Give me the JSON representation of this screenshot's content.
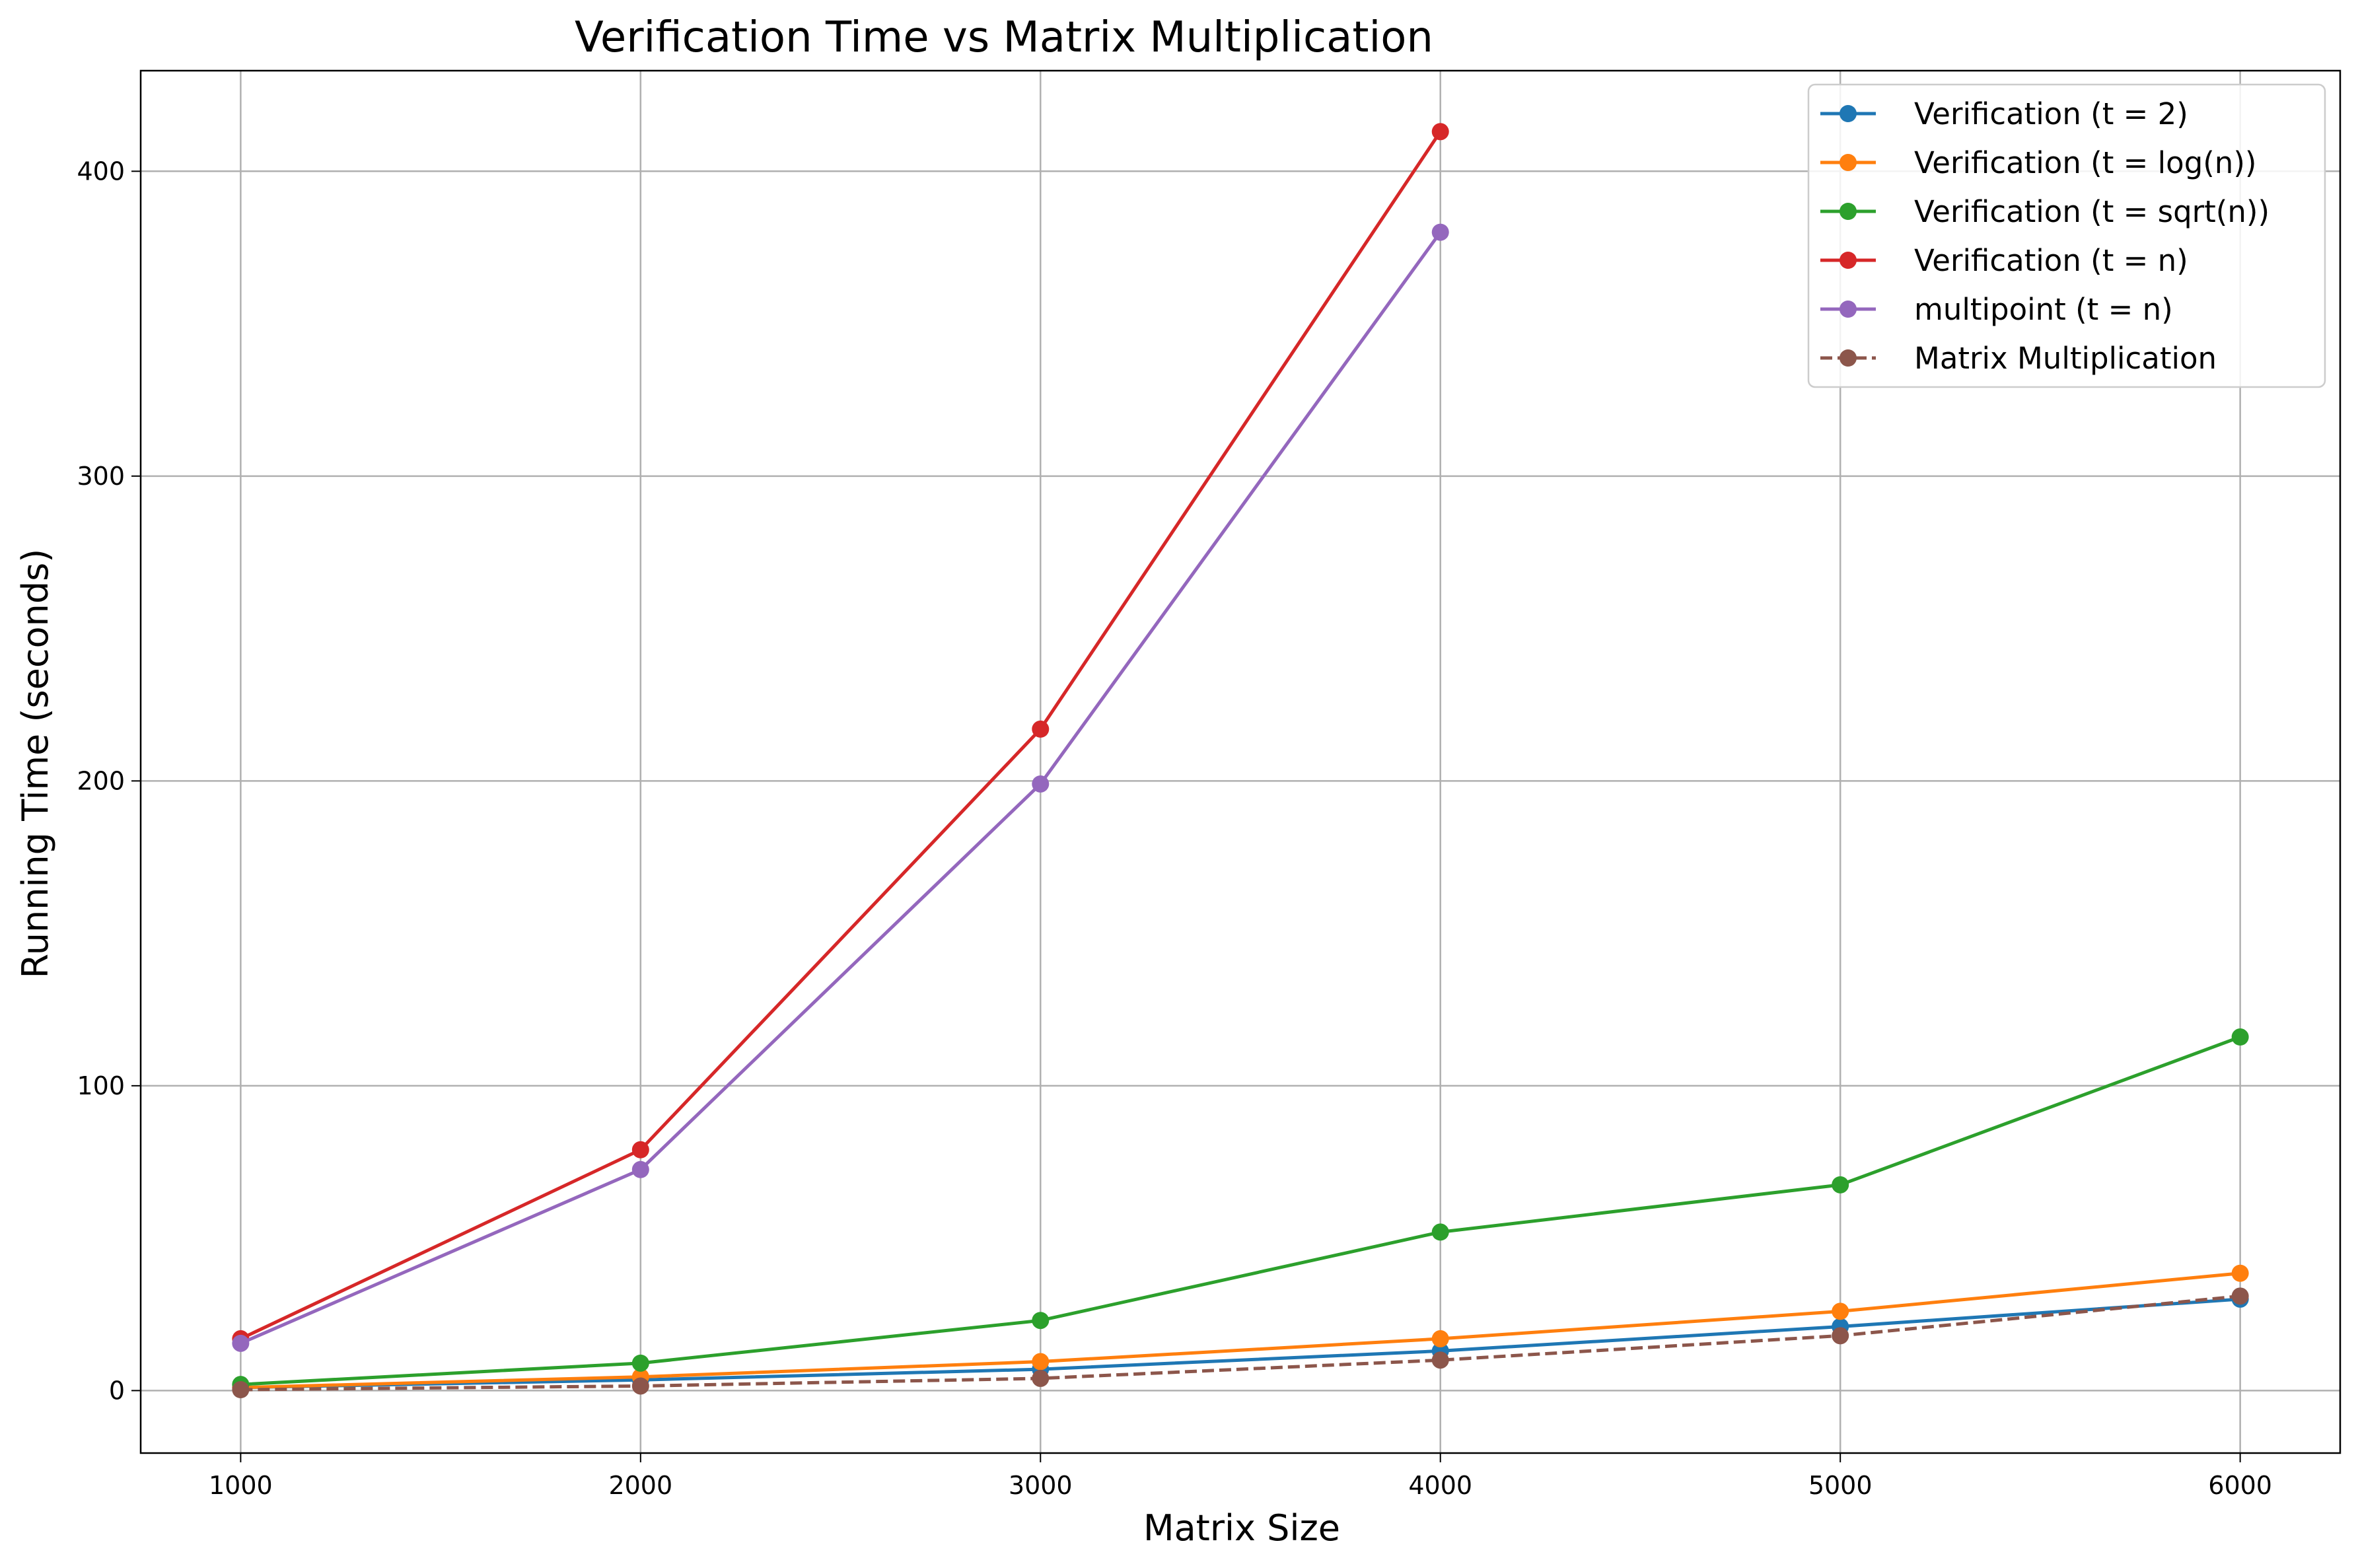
{
  "chart_data": {
    "type": "line",
    "title": "Verification Time vs Matrix Multiplication",
    "xlabel": "Matrix Size",
    "ylabel": "Running Time (seconds)",
    "x_ticks": [
      1000,
      2000,
      3000,
      4000,
      5000,
      6000
    ],
    "y_ticks": [
      0,
      100,
      200,
      300,
      400
    ],
    "xlim": [
      750,
      6250
    ],
    "ylim": [
      -20.5,
      433
    ],
    "grid": true,
    "legend_position": "top-right",
    "series": [
      {
        "name": "Verification (t = 2)",
        "color": "#1f77b4",
        "dashed": false,
        "x": [
          1000,
          2000,
          3000,
          4000,
          5000,
          6000
        ],
        "y": [
          1,
          3.5,
          7,
          13,
          21,
          30
        ]
      },
      {
        "name": "Verification (t = log(n))",
        "color": "#ff7f0e",
        "dashed": false,
        "x": [
          1000,
          2000,
          3000,
          4000,
          5000,
          6000
        ],
        "y": [
          1,
          4.5,
          9.5,
          17,
          26,
          38.5
        ]
      },
      {
        "name": "Verification (t = sqrt(n))",
        "color": "#2ca02c",
        "dashed": false,
        "x": [
          1000,
          2000,
          3000,
          4000,
          5000,
          6000
        ],
        "y": [
          2,
          9,
          23,
          52,
          67.5,
          116
        ]
      },
      {
        "name": "Verification (t = n)",
        "color": "#d62728",
        "dashed": false,
        "x": [
          1000,
          2000,
          3000,
          4000
        ],
        "y": [
          17,
          79,
          217,
          413
        ]
      },
      {
        "name": "multipoint (t = n)",
        "color": "#9467bd",
        "dashed": false,
        "x": [
          1000,
          2000,
          3000,
          4000
        ],
        "y": [
          15.5,
          72.5,
          199,
          380
        ]
      },
      {
        "name": "Matrix Multiplication",
        "color": "#8c564b",
        "dashed": true,
        "x": [
          1000,
          2000,
          3000,
          4000,
          5000,
          6000
        ],
        "y": [
          0.3,
          1.5,
          4,
          10,
          18,
          31
        ]
      }
    ]
  }
}
